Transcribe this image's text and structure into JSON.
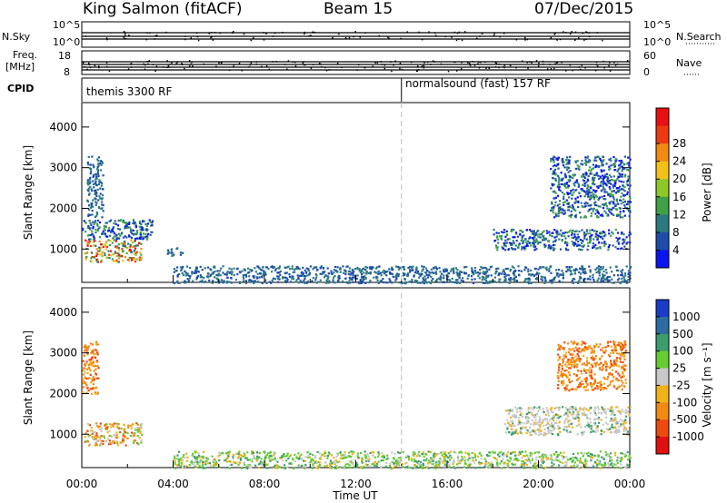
{
  "header": {
    "station": "King Salmon (fitACF)",
    "beam": "Beam 15",
    "date": "07/Dec/2015"
  },
  "status_panel": {
    "nsky_label": "N.Sky",
    "nsky_ticks": [
      "10^5",
      "10^0"
    ],
    "nsearch_label": "N.Search",
    "nsearch_ticks": [
      "10^5",
      "10^0"
    ],
    "freq_label": "Freq.",
    "freq_unit": "[MHz]",
    "freq_ticks": [
      "18",
      "8"
    ],
    "nave_label": "Nave",
    "nave_ticks": [
      "60",
      "0"
    ],
    "cpid_label": "CPID",
    "cpid_segments": [
      {
        "name": "themis 3300 RF",
        "start_h": 0,
        "end_h": 14
      },
      {
        "name": "normalsound (fast) 157 RF",
        "start_h": 14,
        "end_h": 24
      }
    ]
  },
  "chart_data": [
    {
      "type": "heatmap",
      "quantity": "power",
      "ylabel": "Slant Range [km]",
      "yticks": [
        1000,
        2000,
        3000,
        4000
      ],
      "ylim": [
        180,
        4600
      ],
      "xlim": [
        0,
        24
      ],
      "colorbar_label": "Power [dB]",
      "colorbar_ticks": [
        4,
        8,
        12,
        16,
        20,
        24,
        28
      ],
      "colors": [
        "#0a14ee",
        "#1e4ca8",
        "#2b7a80",
        "#3fa048",
        "#8cc828",
        "#f2c21a",
        "#f08a14",
        "#ee3a10",
        "#e81010"
      ],
      "scatter_regions": [
        {
          "h": [
            0.1,
            2.6
          ],
          "r": [
            700,
            1250
          ],
          "level": "high"
        },
        {
          "h": [
            0.0,
            3.1
          ],
          "r": [
            1250,
            1750
          ],
          "level": "mid"
        },
        {
          "h": [
            0.2,
            0.9
          ],
          "r": [
            1800,
            3300
          ],
          "level": "low"
        },
        {
          "h": [
            3.7,
            4.4
          ],
          "r": [
            850,
            1050
          ],
          "level": "low"
        },
        {
          "h": [
            4.0,
            24.0
          ],
          "r": [
            180,
            600
          ],
          "level": "low"
        },
        {
          "h": [
            18.0,
            24.0
          ],
          "r": [
            1000,
            1500
          ],
          "level": "mid"
        },
        {
          "h": [
            20.5,
            24.0
          ],
          "r": [
            1800,
            3300
          ],
          "level": "mid"
        }
      ]
    },
    {
      "type": "heatmap",
      "quantity": "velocity",
      "ylabel": "Slant Range [km]",
      "xlabel": "Time UT",
      "yticks": [
        1000,
        2000,
        3000,
        4000
      ],
      "ylim": [
        180,
        4600
      ],
      "xlim": [
        0,
        24
      ],
      "xticks": [
        "00:00",
        "04:00",
        "08:00",
        "12:00",
        "16:00",
        "20:00",
        "00:00"
      ],
      "colorbar_label": "Velocity [m s⁻¹]",
      "colorbar_ticks": [
        1000,
        500,
        100,
        25,
        -25,
        -100,
        -500,
        -1000
      ],
      "colors": [
        "#1a3cc8",
        "#2c6ca0",
        "#3c9c6c",
        "#66cc33",
        "#c8c8c8",
        "#f2b21a",
        "#f08a14",
        "#ee4a10",
        "#e01010"
      ],
      "scatter_regions": [
        {
          "h": [
            0.1,
            2.6
          ],
          "r": [
            750,
            1300
          ],
          "level": "mix"
        },
        {
          "h": [
            0.0,
            0.7
          ],
          "r": [
            2000,
            3300
          ],
          "level": "neg"
        },
        {
          "h": [
            4.0,
            24.0
          ],
          "r": [
            180,
            600
          ],
          "level": "pos"
        },
        {
          "h": [
            18.5,
            24.0
          ],
          "r": [
            1000,
            1700
          ],
          "level": "zero"
        },
        {
          "h": [
            20.8,
            23.8
          ],
          "r": [
            2100,
            3300
          ],
          "level": "neg"
        }
      ]
    }
  ]
}
